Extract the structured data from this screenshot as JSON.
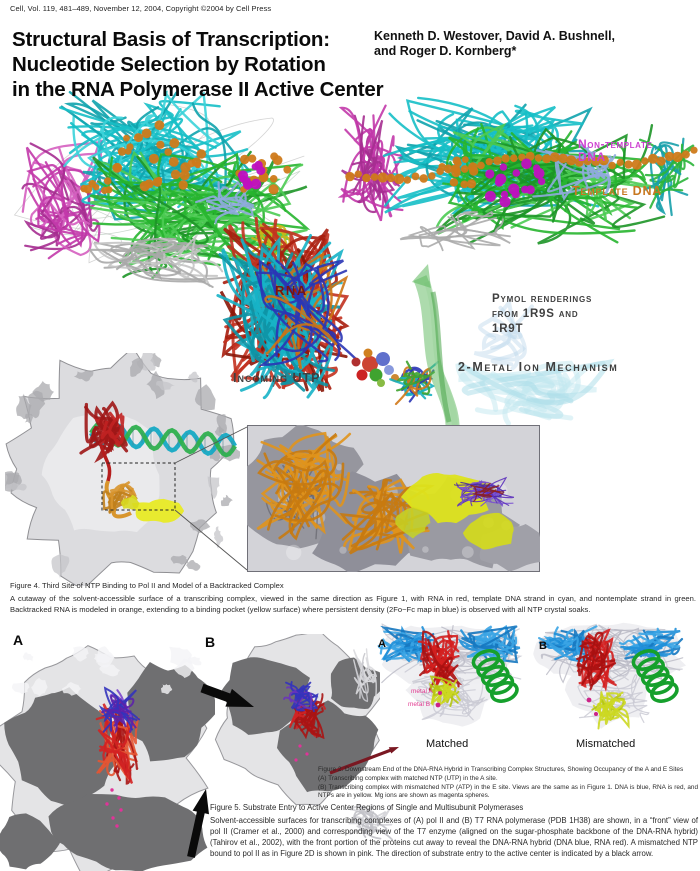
{
  "page": {
    "journal_line": "Cell, Vol. 119, 481–489, November 12, 2004, Copyright ©2004 by Cell Press",
    "title_line1": "Structural Basis of Transcription:",
    "title_line2": "Nucleotide Selection by Rotation",
    "title_line3": "in the RNA Polymerase II Active Center",
    "authors_line1": "Kenneth D. Westover, David A. Bushnell,",
    "authors_line2": "and Roger D. Kornberg*"
  },
  "annotations": {
    "non_template_dna_1": "Non-template",
    "non_template_dna_2": "DNA",
    "template_dna": "Template DNA",
    "rna": "RNA",
    "pymol_1": "Pymol renderings",
    "pymol_2": "from 1R9S and",
    "pymol_3": "1R9T",
    "incoming_utp": "Incoming UTP",
    "two_metal_ion": "2-Metal Ion Mechanism",
    "panel_a_left": "A",
    "panel_b_left": "B",
    "panel_a_right": "A",
    "panel_b_right": "B",
    "metal_a": "metal A",
    "metal_b": "metal B",
    "matched": "Matched",
    "mismatched": "Mismatched"
  },
  "figure4": {
    "heading": "Figure 4. Third Site of NTP Binding to Pol II and Model of a Backtracked Complex",
    "body": "A cutaway of the solvent-accessible surface of a transcribing complex, viewed in the same direction as Figure 1, with RNA in red, template DNA strand in cyan, and nontemplate strand in green. Backtracked RNA is modeled in orange, extending to a binding pocket (yellow surface) where persistent density (2Fo−Fc map in blue) is observed with all NTP crystal soaks."
  },
  "figure2": {
    "heading": "Figure 2. Downstream End of the DNA-RNA Hybrid in Transcribing Complex Structures, Showing Occupancy of the A and E Sites",
    "line_a": "(A) Transcribing complex with matched NTP (UTP) in the A site.",
    "line_b": "(B) Transcribing complex with mismatched NTP (ATP) in the E site. Views are the same as in Figure 1. DNA is blue, RNA is red, and NTPs are in yellow. Mg ions are shown as magenta spheres."
  },
  "figure5": {
    "heading": "Figure 5. Substrate Entry to Active Center Regions of Single and Multisubunit Polymerases",
    "body": "Solvent-accessible surfaces for transcribing complexes of (A) pol II and (B) T7 RNA polymerase (PDB 1H38) are shown, in a “front” view of pol II (Cramer et al., 2000) and corresponding view of the T7 enzyme (aligned on the sugar-phosphate backbone of the DNA-RNA hybrid) (Tahirov et al., 2002), with the front portion of the proteins cut away to reveal the DNA-RNA hybrid (DNA blue, RNA red). A mismatched NTP bound to pol II as in Figure 2D is shown in pink. The direction of substrate entry to the active center is indicated by a black arrow."
  },
  "colors": {
    "non_template_label": "#cc3fd0",
    "template_label": "#c87820",
    "rna_label": "#7a150d",
    "annotation_gray": "#3f3f3f",
    "metal_label": "#e23a90",
    "dna_blue": "#1f8fd8",
    "rna_red": "#d41f1f",
    "ntp_yellow": "#ccd822",
    "backtracked_orange": "#e0941c",
    "pocket_yellow": "#dde31c"
  }
}
